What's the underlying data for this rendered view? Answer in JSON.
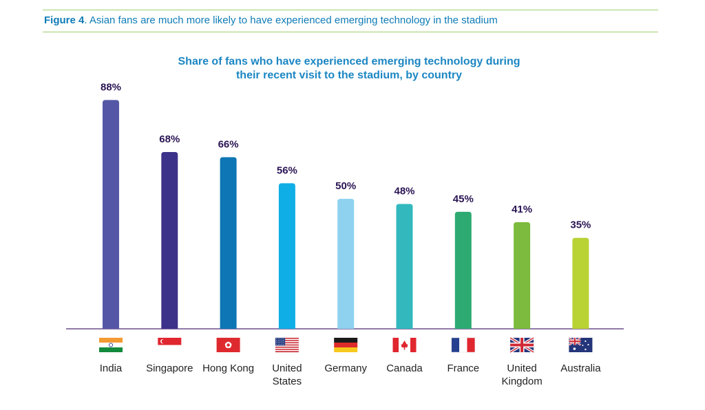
{
  "figure": {
    "label": "Figure 4",
    "caption": ". Asian fans are much more likely to have experienced emerging technology in the stadium"
  },
  "chart_data": {
    "type": "bar",
    "title_lines": [
      "Share of fans who have experienced emerging technology during",
      "their recent visit to the stadium, by country"
    ],
    "categories": [
      "India",
      "Singapore",
      "Hong Kong",
      "United States",
      "Germany",
      "Canada",
      "France",
      "United Kingdom",
      "Australia"
    ],
    "category_lines": [
      [
        "India"
      ],
      [
        "Singapore"
      ],
      [
        "Hong Kong"
      ],
      [
        "United",
        "States"
      ],
      [
        "Germany"
      ],
      [
        "Canada"
      ],
      [
        "France"
      ],
      [
        "United",
        "Kingdom"
      ],
      [
        "Australia"
      ]
    ],
    "values": [
      88,
      68,
      66,
      56,
      50,
      48,
      45,
      41,
      35
    ],
    "value_labels": [
      "88%",
      "68%",
      "66%",
      "56%",
      "50%",
      "48%",
      "45%",
      "41%",
      "35%"
    ],
    "unit": "%",
    "ylim": [
      0,
      100
    ],
    "grid": false,
    "colors": [
      "#5557a6",
      "#3c328a",
      "#0e76b4",
      "#10aee6",
      "#8ed2f0",
      "#33b9bd",
      "#2daa72",
      "#7cbb3d",
      "#b9d234"
    ],
    "flag_icons": [
      "india-flag-icon",
      "singapore-flag-icon",
      "hong-kong-flag-icon",
      "usa-flag-icon",
      "germany-flag-icon",
      "canada-flag-icon",
      "france-flag-icon",
      "uk-flag-icon",
      "australia-flag-icon"
    ],
    "axis_color": "#6b4d8c",
    "label_color": "#2a1454"
  }
}
